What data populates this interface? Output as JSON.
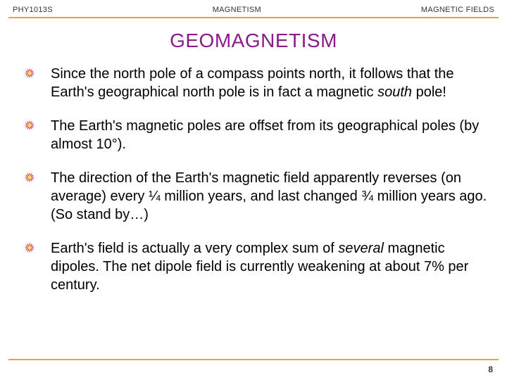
{
  "header": {
    "left": "PHY1013S",
    "center": "MAGNETISM",
    "right": "MAGNETIC FIELDS",
    "rule_color": "#f0a030"
  },
  "title": {
    "text": "GEOMAGNETISM",
    "color": "#8b1a8b"
  },
  "bullet_icon": {
    "burst_color": "#e63838",
    "center_color": "#f8d858"
  },
  "bullets": [
    {
      "html": "Since the north pole of a compass points north, it follows that the Earth's geographical north pole is in fact a magnetic <i>south</i>  pole!"
    },
    {
      "html": "The Earth's magnetic poles are offset from its geographical poles (by almost 10°)."
    },
    {
      "html": "The direction of the Earth's magnetic field apparently reverses (on average) every ¼ million years, and last changed ¾ million years ago.  (So stand by…)"
    },
    {
      "html": "Earth's field is actually a very complex sum of <i>several</i> magnetic dipoles.  The net dipole field is currently weakening at about 7% per century."
    }
  ],
  "footer": {
    "rule_color": "#f0a030",
    "page_number": "8"
  }
}
